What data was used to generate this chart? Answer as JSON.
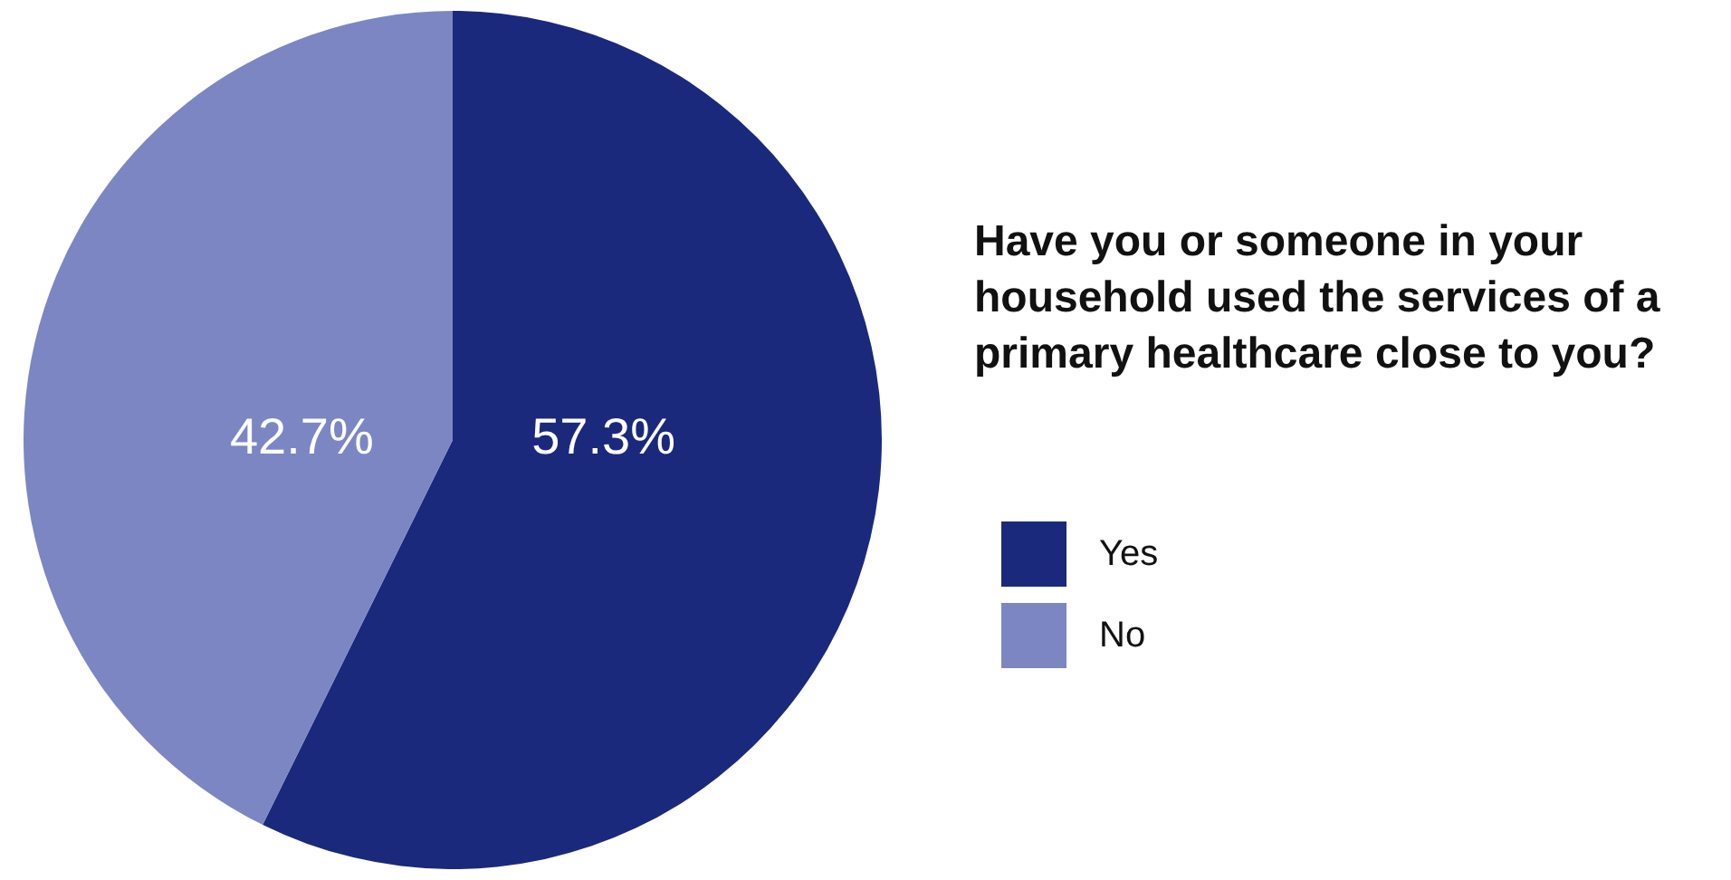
{
  "chart_data": {
    "type": "pie",
    "title": "Have you or someone in your household used the services of a primary healthcare close to you?",
    "categories": [
      "Yes",
      "No"
    ],
    "values": [
      57.3,
      42.7
    ],
    "colors": [
      "#1b297c",
      "#7c86c2"
    ],
    "value_labels": [
      "57.3%",
      "42.7%"
    ],
    "legend": "right"
  }
}
